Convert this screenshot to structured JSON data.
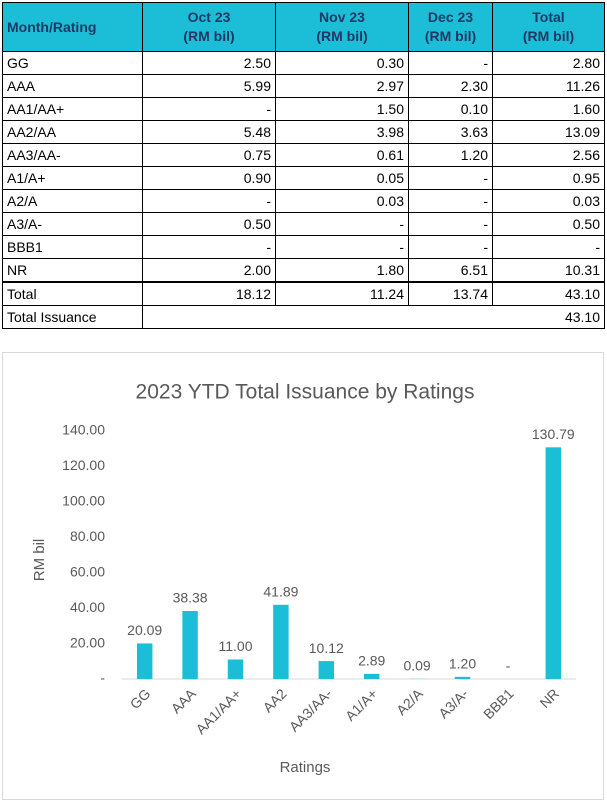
{
  "table": {
    "header": [
      [
        "Month/Rating"
      ],
      [
        "Oct 23",
        "(RM bil)"
      ],
      [
        "Nov 23",
        "(RM bil)"
      ],
      [
        "Dec 23",
        "(RM bil)"
      ],
      [
        "Total",
        "(RM bil)"
      ]
    ],
    "rows": [
      [
        "GG",
        "2.50",
        "0.30",
        "-",
        "2.80"
      ],
      [
        "AAA",
        "5.99",
        "2.97",
        "2.30",
        "11.26"
      ],
      [
        "AA1/AA+",
        "-",
        "1.50",
        "0.10",
        "1.60"
      ],
      [
        "AA2/AA",
        "5.48",
        "3.98",
        "3.63",
        "13.09"
      ],
      [
        "AA3/AA-",
        "0.75",
        "0.61",
        "1.20",
        "2.56"
      ],
      [
        "A1/A+",
        "0.90",
        "0.05",
        "-",
        "0.95"
      ],
      [
        "A2/A",
        "-",
        "0.03",
        "-",
        "0.03"
      ],
      [
        "A3/A-",
        "0.50",
        "-",
        "-",
        "0.50"
      ],
      [
        "BBB1",
        "-",
        "-",
        "-",
        "-"
      ],
      [
        "NR",
        "2.00",
        "1.80",
        "6.51",
        "10.31"
      ]
    ],
    "total": [
      "Total",
      "18.12",
      "11.24",
      "13.74",
      "43.10"
    ],
    "issuance": [
      "Total Issuance",
      "43.10"
    ]
  },
  "chart_data": {
    "type": "bar",
    "title": "2023 YTD Total Issuance  by Ratings",
    "x_label": "Ratings",
    "y_label": "RM bil",
    "categories": [
      "GG",
      "AAA",
      "AA1/AA+",
      "AA2",
      "AA3/AA-",
      "A1/A+",
      "A2/A",
      "A3/A-",
      "BBB1",
      "NR"
    ],
    "values": [
      20.09,
      38.38,
      11.0,
      41.89,
      10.12,
      2.89,
      0.09,
      1.2,
      0,
      130.79
    ],
    "value_labels": [
      "20.09",
      "38.38",
      "11.00",
      "41.89",
      "10.12",
      "2.89",
      "0.09",
      "1.20",
      "-",
      "130.79"
    ],
    "color": "#1cbdd6",
    "ylim": [
      0,
      140
    ],
    "yticks": [
      {
        "value": 0,
        "label": "-"
      },
      {
        "value": 20,
        "label": "20.00"
      },
      {
        "value": 40,
        "label": "40.00"
      },
      {
        "value": 60,
        "label": "60.00"
      },
      {
        "value": 80,
        "label": "80.00"
      },
      {
        "value": 100,
        "label": "100.00"
      },
      {
        "value": 120,
        "label": "120.00"
      },
      {
        "value": 140,
        "label": "140.00"
      }
    ],
    "grid": false
  }
}
